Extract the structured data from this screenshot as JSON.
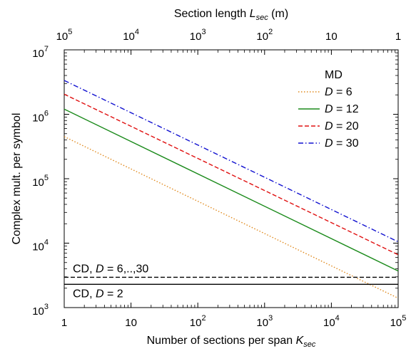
{
  "chart_data": {
    "type": "line",
    "xscale": "log",
    "yscale": "log",
    "xlim": [
      1,
      100000
    ],
    "ylim": [
      1000,
      10000000
    ],
    "xlabel": {
      "main": "Number of sections per span ",
      "var": "K",
      "sub": "sec"
    },
    "ylabel": "Complex mult. per symbol",
    "top_axis": {
      "label": {
        "main": "Section length ",
        "var": "L",
        "sub": "sec",
        "unit": " (m)"
      },
      "ticks": [
        {
          "base": "10",
          "exp": "5"
        },
        {
          "base": "10",
          "exp": "4"
        },
        {
          "base": "10",
          "exp": "3"
        },
        {
          "base": "10",
          "exp": "2"
        },
        {
          "base": "10",
          "exp": ""
        },
        {
          "base": "1",
          "exp": ""
        }
      ]
    },
    "x_ticks": [
      {
        "value": 1,
        "base": "1",
        "exp": ""
      },
      {
        "value": 10,
        "base": "10",
        "exp": ""
      },
      {
        "value": 100,
        "base": "10",
        "exp": "2"
      },
      {
        "value": 1000,
        "base": "10",
        "exp": "3"
      },
      {
        "value": 10000,
        "base": "10",
        "exp": "4"
      },
      {
        "value": 100000,
        "base": "10",
        "exp": "5"
      }
    ],
    "y_ticks": [
      {
        "value": 1000,
        "base": "10",
        "exp": "3"
      },
      {
        "value": 10000,
        "base": "10",
        "exp": "4"
      },
      {
        "value": 100000,
        "base": "10",
        "exp": "5"
      },
      {
        "value": 1000000,
        "base": "10",
        "exp": "6"
      },
      {
        "value": 10000000,
        "base": "10",
        "exp": "7"
      }
    ],
    "legend": {
      "title": "MD",
      "position": "top-right"
    },
    "series": [
      {
        "label_var": "D",
        "label_val": " = 6",
        "color": "#e08a1e",
        "dash": "dotted",
        "x": [
          1,
          100000
        ],
        "y": [
          450000,
          1400
        ]
      },
      {
        "label_var": "D",
        "label_val": " = 12",
        "color": "#1a8a1a",
        "dash": "solid",
        "x": [
          1,
          100000
        ],
        "y": [
          1200000,
          3700
        ]
      },
      {
        "label_var": "D",
        "label_val": " = 20",
        "color": "#e01010",
        "dash": "dashed",
        "x": [
          1,
          100000
        ],
        "y": [
          2050000,
          6600
        ]
      },
      {
        "label_var": "D",
        "label_val": " = 30",
        "color": "#1010d0",
        "dash": "dashdot",
        "x": [
          1,
          100000
        ],
        "y": [
          3350000,
          10500
        ]
      }
    ],
    "reference_lines": [
      {
        "pre": "CD, ",
        "var": "D",
        "post": " = 6,..,30",
        "y": 2950,
        "dash": "dashed",
        "color": "#000000"
      },
      {
        "pre": "CD, ",
        "var": "D",
        "post": " = 2",
        "y": 2300,
        "dash": "solid",
        "color": "#000000"
      }
    ],
    "grid": false
  }
}
